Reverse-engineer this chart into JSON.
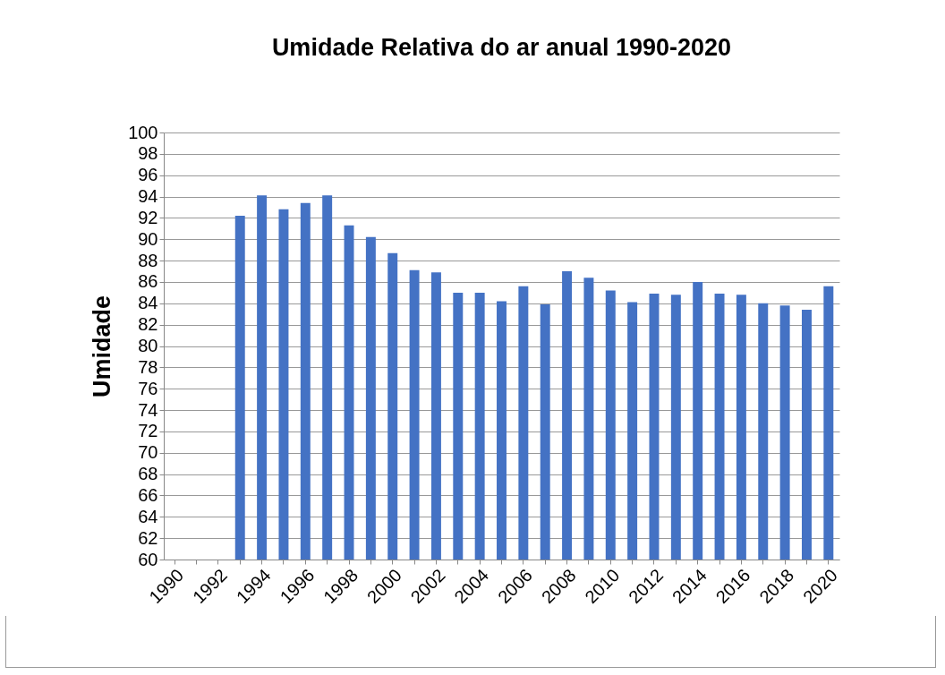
{
  "chart_data": {
    "type": "bar",
    "title": "Umidade Relativa do ar anual 1990-2020",
    "ylabel": "Umidade",
    "categories": [
      "1990",
      null,
      "1992",
      null,
      "1994",
      null,
      "1996",
      null,
      "1998",
      null,
      "2000",
      null,
      "2002",
      null,
      "2004",
      null,
      "2006",
      null,
      "2008",
      null,
      "2010",
      null,
      "2012",
      null,
      "2014",
      null,
      "2016",
      null,
      "2018",
      null,
      "2020"
    ],
    "values": [
      null,
      null,
      null,
      92.2,
      94.1,
      92.8,
      93.4,
      94.1,
      91.3,
      90.2,
      88.7,
      87.1,
      86.9,
      85.0,
      85.0,
      84.2,
      85.6,
      83.9,
      87.0,
      86.4,
      85.2,
      84.1,
      84.9,
      84.8,
      86.0,
      84.9,
      84.8,
      84.0,
      83.8,
      83.4,
      85.6
    ],
    "color": "#4472c4",
    "ylim": [
      60,
      100
    ],
    "yticks": [
      60,
      62,
      64,
      66,
      68,
      70,
      72,
      74,
      76,
      78,
      80,
      82,
      84,
      86,
      88,
      90,
      92,
      94,
      96,
      98,
      100
    ],
    "grid": "y"
  }
}
